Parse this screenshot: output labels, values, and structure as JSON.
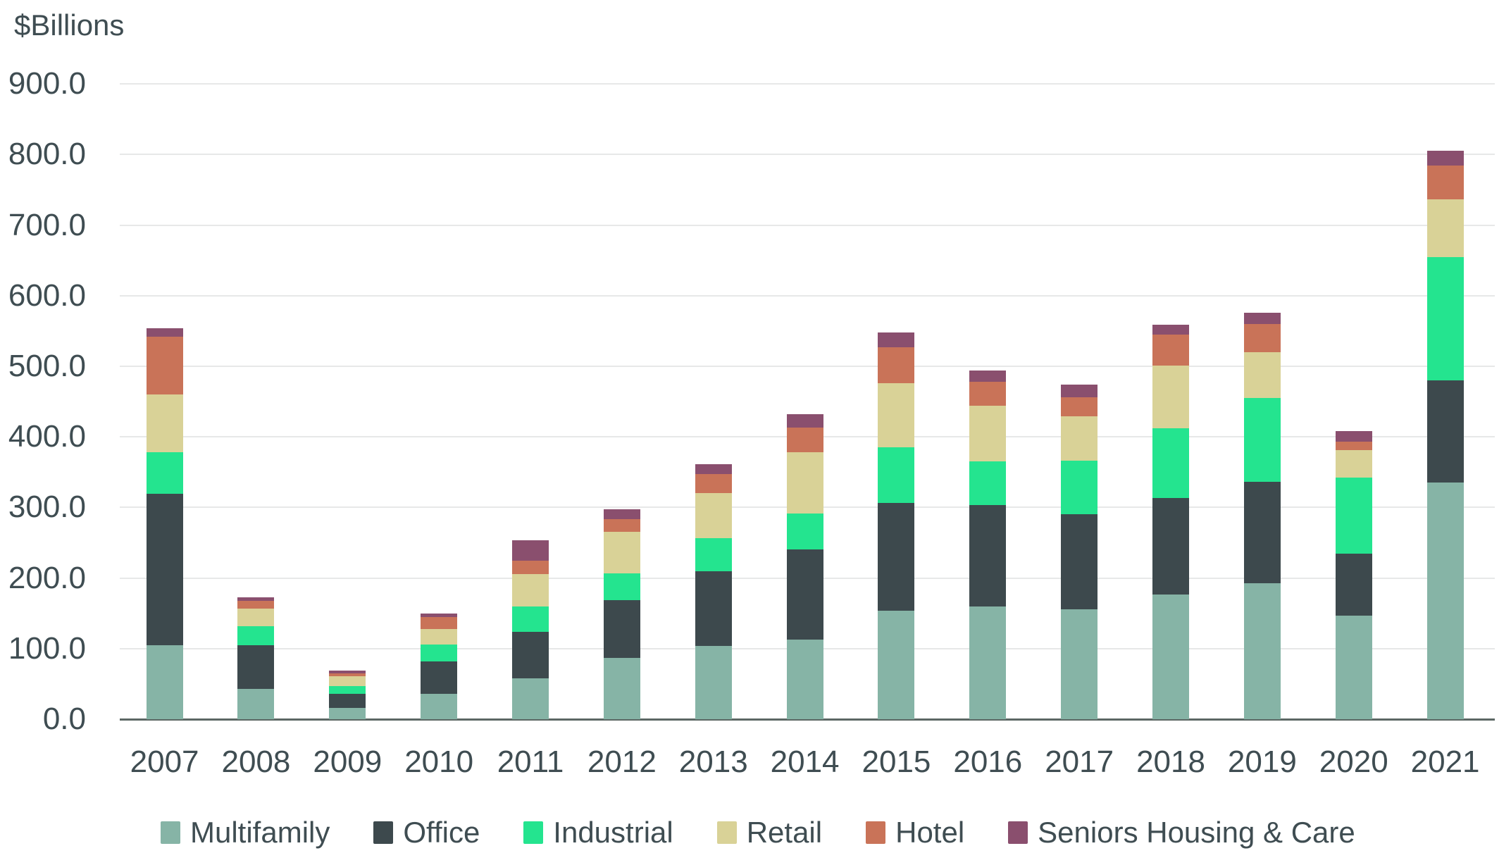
{
  "y_axis": {
    "title": "$Billions",
    "tick_labels": [
      "0.0",
      "100.0",
      "200.0",
      "300.0",
      "400.0",
      "500.0",
      "600.0",
      "700.0",
      "800.0",
      "900.0"
    ]
  },
  "x_axis": {
    "categories": [
      "2007",
      "2008",
      "2009",
      "2010",
      "2011",
      "2012",
      "2013",
      "2014",
      "2015",
      "2016",
      "2017",
      "2018",
      "2019",
      "2020",
      "2021"
    ]
  },
  "colors": {
    "multifamily": "#86B4A6",
    "office": "#3D494D",
    "industrial": "#24E48F",
    "retail": "#D9D297",
    "hotel": "#C97358",
    "seniors_housing_care": "#8A4F6E",
    "text": "#3F4D52",
    "gridline": "#E7E8E8",
    "axis_line": "#5C6764"
  },
  "legend": {
    "items": [
      {
        "label": "Multifamily",
        "color": "#86B4A6"
      },
      {
        "label": "Office",
        "color": "#3D494D"
      },
      {
        "label": "Industrial",
        "color": "#24E48F"
      },
      {
        "label": "Retail",
        "color": "#D9D297"
      },
      {
        "label": "Hotel",
        "color": "#C97358"
      },
      {
        "label": "Seniors Housing & Care",
        "color": "#8A4F6E"
      }
    ]
  },
  "chart_data": {
    "type": "bar",
    "stacked": true,
    "title": "$Billions",
    "ylabel": "$Billions",
    "ylim": [
      0,
      900
    ],
    "ytick_step": 100,
    "grid": true,
    "legend_position": "bottom",
    "categories": [
      "2007",
      "2008",
      "2009",
      "2010",
      "2011",
      "2012",
      "2013",
      "2014",
      "2015",
      "2016",
      "2017",
      "2018",
      "2019",
      "2020",
      "2021"
    ],
    "series": [
      {
        "name": "Multifamily",
        "color": "#86B4A6",
        "values": [
          105,
          43,
          16,
          36,
          58,
          87,
          104,
          113,
          154,
          160,
          156,
          177,
          193,
          147,
          335
        ]
      },
      {
        "name": "Office",
        "color": "#3D494D",
        "values": [
          214,
          62,
          20,
          46,
          66,
          82,
          106,
          128,
          152,
          143,
          134,
          136,
          143,
          88,
          145
        ]
      },
      {
        "name": "Industrial",
        "color": "#24E48F",
        "values": [
          59,
          27,
          11,
          24,
          36,
          38,
          46,
          50,
          79,
          62,
          76,
          99,
          119,
          107,
          175
        ]
      },
      {
        "name": "Retail",
        "color": "#D9D297",
        "values": [
          82,
          25,
          14,
          22,
          46,
          58,
          64,
          87,
          91,
          79,
          63,
          89,
          65,
          39,
          82
        ]
      },
      {
        "name": "Hotel",
        "color": "#C97358",
        "values": [
          82,
          11,
          4,
          17,
          19,
          18,
          27,
          35,
          51,
          34,
          27,
          44,
          40,
          12,
          47
        ]
      },
      {
        "name": "Seniors Housing & Care",
        "color": "#8A4F6E",
        "values": [
          12,
          5,
          4,
          5,
          28,
          14,
          14,
          19,
          21,
          16,
          18,
          14,
          16,
          15,
          21
        ]
      }
    ]
  }
}
